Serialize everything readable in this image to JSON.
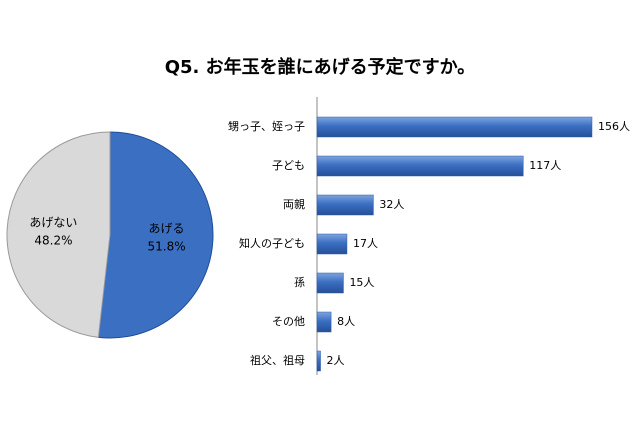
{
  "title": "Q5. お年玉を誰にあげる予定ですか。",
  "chart_data": [
    {
      "type": "pie",
      "categories": [
        "あげる",
        "あげない"
      ],
      "values": [
        51.8,
        48.2
      ],
      "value_labels": [
        "51.8%",
        "48.2%"
      ],
      "colors": [
        "#3b6fc2",
        "#d9d9d9"
      ]
    },
    {
      "type": "hbar",
      "categories": [
        "甥っ子、姪っ子",
        "子ども",
        "両親",
        "知人の子ども",
        "孫",
        "その他",
        "祖父、祖母"
      ],
      "values": [
        156,
        117,
        32,
        17,
        15,
        8,
        2
      ],
      "value_labels": [
        "156人",
        "117人",
        "32人",
        "17人",
        "15人",
        "8人",
        "2人"
      ],
      "color": "#3b6fc2"
    }
  ]
}
